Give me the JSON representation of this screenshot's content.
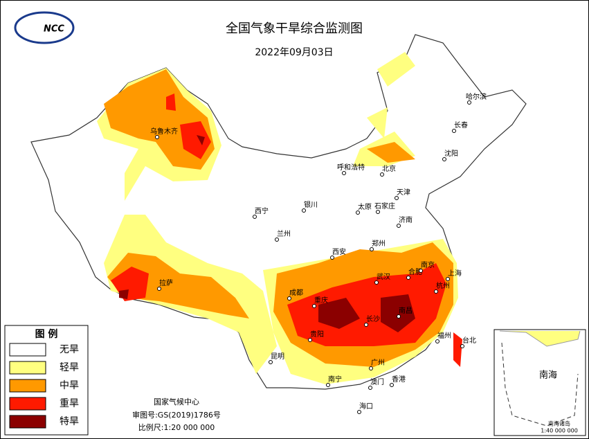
{
  "header": {
    "title": "全国气象干旱综合监测图",
    "date": "2022年09月03日",
    "logo": "NCC"
  },
  "legend": {
    "title": "图 例",
    "items": [
      {
        "label": "无旱",
        "color": "#ffffff"
      },
      {
        "label": "轻旱",
        "color": "#ffff80"
      },
      {
        "label": "中旱",
        "color": "#ff9900"
      },
      {
        "label": "重旱",
        "color": "#ff1a00"
      },
      {
        "label": "特旱",
        "color": "#8b0000"
      }
    ]
  },
  "footer": {
    "agency": "国家气候中心",
    "approval": "审图号:GS(2019)1786号",
    "scale": "比例尺:1:20 000 000"
  },
  "cities": [
    {
      "name": "哈尔滨"
    },
    {
      "name": "长春"
    },
    {
      "name": "沈阳"
    },
    {
      "name": "呼和浩特"
    },
    {
      "name": "北京"
    },
    {
      "name": "天津"
    },
    {
      "name": "石家庄"
    },
    {
      "name": "太原"
    },
    {
      "name": "济南"
    },
    {
      "name": "银川"
    },
    {
      "name": "西宁"
    },
    {
      "name": "兰州"
    },
    {
      "name": "郑州"
    },
    {
      "name": "西安"
    },
    {
      "name": "乌鲁木齐"
    },
    {
      "name": "拉萨"
    },
    {
      "name": "成都"
    },
    {
      "name": "重庆"
    },
    {
      "name": "武汉"
    },
    {
      "name": "合肥"
    },
    {
      "name": "南京"
    },
    {
      "name": "上海"
    },
    {
      "name": "杭州"
    },
    {
      "name": "长沙"
    },
    {
      "name": "南昌"
    },
    {
      "name": "贵阳"
    },
    {
      "name": "福州"
    },
    {
      "name": "台北"
    },
    {
      "name": "昆明"
    },
    {
      "name": "南宁"
    },
    {
      "name": "广州"
    },
    {
      "name": "香港"
    },
    {
      "name": "澳门"
    },
    {
      "name": "海口"
    }
  ],
  "inset": {
    "title": "南海",
    "caption": "南海诸岛",
    "scale": "1:40 000 000"
  }
}
